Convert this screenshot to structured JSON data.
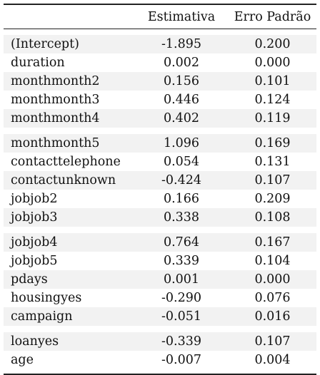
{
  "table": {
    "header": [
      "",
      "Estimativa",
      "Erro Padrão"
    ],
    "groups": [
      [
        {
          "term": "(Intercept)",
          "estimate": "-1.895",
          "se": "0.200"
        },
        {
          "term": "duration",
          "estimate": "0.002",
          "se": "0.000"
        },
        {
          "term": "monthmonth2",
          "estimate": "0.156",
          "se": "0.101"
        },
        {
          "term": "monthmonth3",
          "estimate": "0.446",
          "se": "0.124"
        },
        {
          "term": "monthmonth4",
          "estimate": "0.402",
          "se": "0.119"
        }
      ],
      [
        {
          "term": "monthmonth5",
          "estimate": "1.096",
          "se": "0.169"
        },
        {
          "term": "contacttelephone",
          "estimate": "0.054",
          "se": "0.131"
        },
        {
          "term": "contactunknown",
          "estimate": "-0.424",
          "se": "0.107"
        },
        {
          "term": "jobjob2",
          "estimate": "0.166",
          "se": "0.209"
        },
        {
          "term": "jobjob3",
          "estimate": "0.338",
          "se": "0.108"
        }
      ],
      [
        {
          "term": "jobjob4",
          "estimate": "0.764",
          "se": "0.167"
        },
        {
          "term": "jobjob5",
          "estimate": "0.339",
          "se": "0.104"
        },
        {
          "term": "pdays",
          "estimate": "0.001",
          "se": "0.000"
        },
        {
          "term": "housingyes",
          "estimate": "-0.290",
          "se": "0.076"
        },
        {
          "term": "campaign",
          "estimate": "-0.051",
          "se": "0.016"
        }
      ],
      [
        {
          "term": "loanyes",
          "estimate": "-0.339",
          "se": "0.107"
        },
        {
          "term": "age",
          "estimate": "-0.007",
          "se": "0.004"
        }
      ]
    ]
  },
  "colors": {
    "shade": "#f2f2f2",
    "rule": "#222222"
  }
}
